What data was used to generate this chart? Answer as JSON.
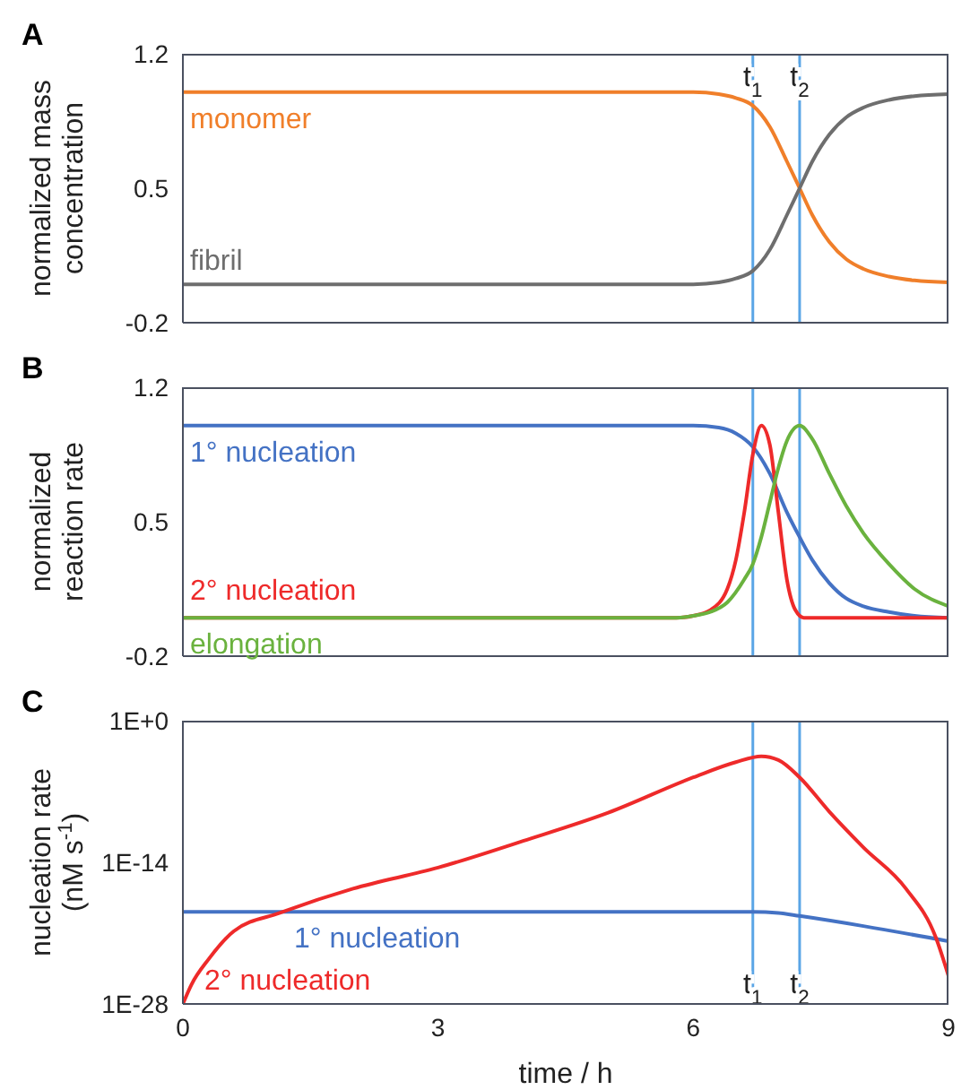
{
  "chart_data": [
    {
      "type": "line",
      "title": "A",
      "ylabel": "normalized mass concentration",
      "marker": "none",
      "tick_labels": "y",
      "xlim": [
        0,
        9
      ],
      "xticks": [
        0,
        3,
        6,
        9
      ],
      "ylim": [
        -0.2,
        1.2
      ],
      "yticks": [
        -0.2,
        0.5,
        1.2
      ],
      "series": [
        {
          "name": "monomer",
          "color": "#f07f2a",
          "x": [
            0,
            6.0,
            6.3,
            6.5,
            6.7,
            6.9,
            7.1,
            7.25,
            7.4,
            7.6,
            7.8,
            8.0,
            8.3,
            8.6,
            9
          ],
          "values": [
            1,
            1,
            0.99,
            0.97,
            0.93,
            0.82,
            0.64,
            0.5,
            0.36,
            0.22,
            0.13,
            0.08,
            0.04,
            0.02,
            0.01
          ]
        },
        {
          "name": "fibril",
          "color": "#6e6e6e",
          "x": [
            0,
            6.0,
            6.3,
            6.5,
            6.7,
            6.9,
            7.1,
            7.25,
            7.4,
            7.6,
            7.8,
            8.0,
            8.3,
            8.6,
            9
          ],
          "values": [
            0,
            0,
            0.01,
            0.03,
            0.07,
            0.18,
            0.36,
            0.5,
            0.64,
            0.78,
            0.87,
            0.92,
            0.96,
            0.98,
            0.99
          ]
        }
      ],
      "ref_lines": [
        {
          "axis": "x",
          "value": 6.7,
          "label": "t$_{1}$",
          "color": "#5aa5e6"
        },
        {
          "axis": "x",
          "value": 7.25,
          "label": "t$_{2}$",
          "color": "#5aa5e6"
        }
      ]
    },
    {
      "type": "line",
      "title": "B",
      "ylabel": "normalized reaction rate",
      "marker": "none",
      "tick_labels": "y",
      "xlim": [
        0,
        9
      ],
      "xticks": [
        0,
        3,
        6,
        9
      ],
      "ylim": [
        -0.2,
        1.2
      ],
      "yticks": [
        -0.2,
        0.5,
        1.2
      ],
      "series": [
        {
          "name": "1° nucleation",
          "color": "#4472c4",
          "x": [
            0,
            6.0,
            6.3,
            6.5,
            6.7,
            6.9,
            7.1,
            7.25,
            7.4,
            7.6,
            7.8,
            8.0,
            8.3,
            8.6,
            9
          ],
          "values": [
            1,
            1,
            0.99,
            0.96,
            0.89,
            0.75,
            0.55,
            0.42,
            0.3,
            0.18,
            0.1,
            0.06,
            0.03,
            0.01,
            0
          ]
        },
        {
          "name": "2° nucleation",
          "color": "#ee2a2a",
          "x": [
            0,
            5.8,
            6.0,
            6.2,
            6.4,
            6.5,
            6.6,
            6.7,
            6.8,
            6.9,
            7.0,
            7.1,
            7.2,
            7.3,
            9
          ],
          "values": [
            0,
            0,
            0.01,
            0.04,
            0.15,
            0.3,
            0.55,
            0.85,
            1.0,
            0.9,
            0.55,
            0.2,
            0.04,
            0,
            0
          ]
        },
        {
          "name": "elongation",
          "color": "#6ab23e",
          "x": [
            0,
            5.8,
            6.0,
            6.2,
            6.4,
            6.6,
            6.7,
            6.8,
            6.9,
            7.0,
            7.1,
            7.25,
            7.4,
            7.6,
            7.8,
            8.0,
            8.3,
            8.6,
            9
          ],
          "values": [
            0,
            0,
            0.01,
            0.03,
            0.08,
            0.2,
            0.28,
            0.42,
            0.6,
            0.78,
            0.92,
            1.0,
            0.93,
            0.75,
            0.58,
            0.44,
            0.28,
            0.15,
            0.06
          ]
        }
      ],
      "ref_lines": [
        {
          "axis": "x",
          "value": 6.7,
          "label": null,
          "color": "#5aa5e6"
        },
        {
          "axis": "x",
          "value": 7.25,
          "label": null,
          "color": "#5aa5e6"
        }
      ]
    },
    {
      "type": "line",
      "title": "C",
      "xlabel": "time / h",
      "ylabel": "nucleation rate (nM s$^{-1}$)",
      "marker": "none",
      "log": "y",
      "xlim": [
        0,
        9
      ],
      "xticks": [
        0,
        3,
        6,
        9
      ],
      "ylim": [
        1e-28,
        1
      ],
      "yticks": [
        {
          "value": 1e-28,
          "label": "1E-28"
        },
        {
          "value": 1e-14,
          "label": "1E-14"
        },
        {
          "value": 1,
          "label": "1E+0"
        }
      ],
      "series": [
        {
          "name": "1° nucleation",
          "color": "#4472c4",
          "x": [
            0,
            6.7,
            7.0,
            7.25,
            8.0,
            9
          ],
          "values": [
            1.3e-19,
            1.3e-19,
            1e-19,
            5e-20,
            5e-21,
            1.6e-22
          ]
        },
        {
          "name": "2° nucleation",
          "color": "#ee2a2a",
          "x": [
            0,
            0.1,
            0.3,
            0.6,
            1.14,
            2,
            3,
            4,
            5,
            6,
            6.5,
            6.8,
            7.0,
            7.25,
            7.6,
            8,
            8.5,
            8.85,
            9
          ],
          "values": [
            1e-28,
            8e-27,
            2.5e-24,
            1.6e-21,
            1e-19,
            2.5e-17,
            3e-15,
            1.3e-12,
            8e-10,
            2.5e-06,
            8e-05,
            0.0003,
            0.00013,
            2.5e-06,
            1e-09,
            3e-13,
            2.5e-17,
            4e-22,
            6e-26
          ]
        }
      ],
      "ref_lines": [
        {
          "axis": "x",
          "value": 6.7,
          "label": "t$_{1}$",
          "color": "#5aa5e6"
        },
        {
          "axis": "x",
          "value": 7.25,
          "label": "t$_{2}$",
          "color": "#5aa5e6"
        }
      ]
    }
  ]
}
